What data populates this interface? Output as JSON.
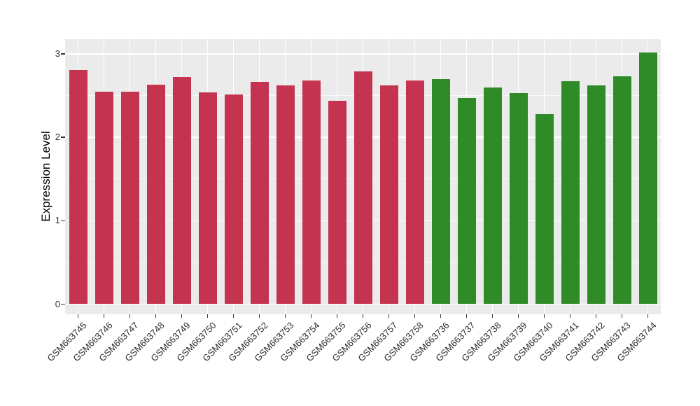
{
  "figure": {
    "background_color": "#ffffff",
    "panel_background_color": "#ebebeb",
    "grid_color": "#ffffff",
    "axis_text_color": "#333333",
    "axis_title_color": "#000000"
  },
  "chart_data": {
    "type": "bar",
    "title": "",
    "xlabel": "",
    "ylabel": "Expression Level",
    "ylim": [
      0,
      3.17
    ],
    "y_ticks": [
      "0",
      "1",
      "2",
      "3"
    ],
    "y_tick_values": [
      0,
      1,
      2,
      3
    ],
    "y_minor_tick_values": [
      0.5,
      1.5,
      2.5
    ],
    "grid": "on",
    "legend_position": "none",
    "x_tick_rotation_degrees": 45,
    "categories": [
      "GSM663745",
      "GSM663746",
      "GSM663747",
      "GSM663748",
      "GSM663749",
      "GSM663750",
      "GSM663751",
      "GSM663752",
      "GSM663753",
      "GSM663754",
      "GSM663755",
      "GSM663756",
      "GSM663757",
      "GSM663758",
      "GSM663736",
      "GSM663737",
      "GSM663738",
      "GSM663739",
      "GSM663740",
      "GSM663741",
      "GSM663742",
      "GSM663743",
      "GSM663744"
    ],
    "values": [
      2.81,
      2.55,
      2.55,
      2.63,
      2.72,
      2.54,
      2.51,
      2.66,
      2.62,
      2.68,
      2.44,
      2.79,
      2.62,
      2.68,
      2.7,
      2.47,
      2.6,
      2.53,
      2.28,
      2.67,
      2.62,
      2.73,
      3.02
    ],
    "groups": [
      "group1",
      "group1",
      "group1",
      "group1",
      "group1",
      "group1",
      "group1",
      "group1",
      "group1",
      "group1",
      "group1",
      "group1",
      "group1",
      "group1",
      "group2",
      "group2",
      "group2",
      "group2",
      "group2",
      "group2",
      "group2",
      "group2",
      "group2"
    ],
    "group_colors": {
      "group1": "#c4334f",
      "group2": "#2e8b27"
    }
  }
}
